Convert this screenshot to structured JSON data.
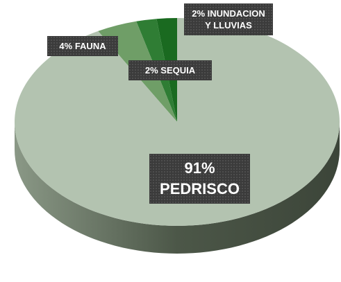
{
  "chart_data": {
    "type": "pie",
    "categories": [
      "PEDRISCO",
      "FAUNA",
      "SEQUIA",
      "INUNDACION Y LLUVIAS"
    ],
    "values": [
      91,
      4,
      2,
      2
    ],
    "value_labels": [
      "91%",
      "4%",
      "2%",
      "2%"
    ],
    "colors": [
      "#b3c3b0",
      "#6f9e67",
      "#2f7d34",
      "#1a6a20"
    ]
  }
}
